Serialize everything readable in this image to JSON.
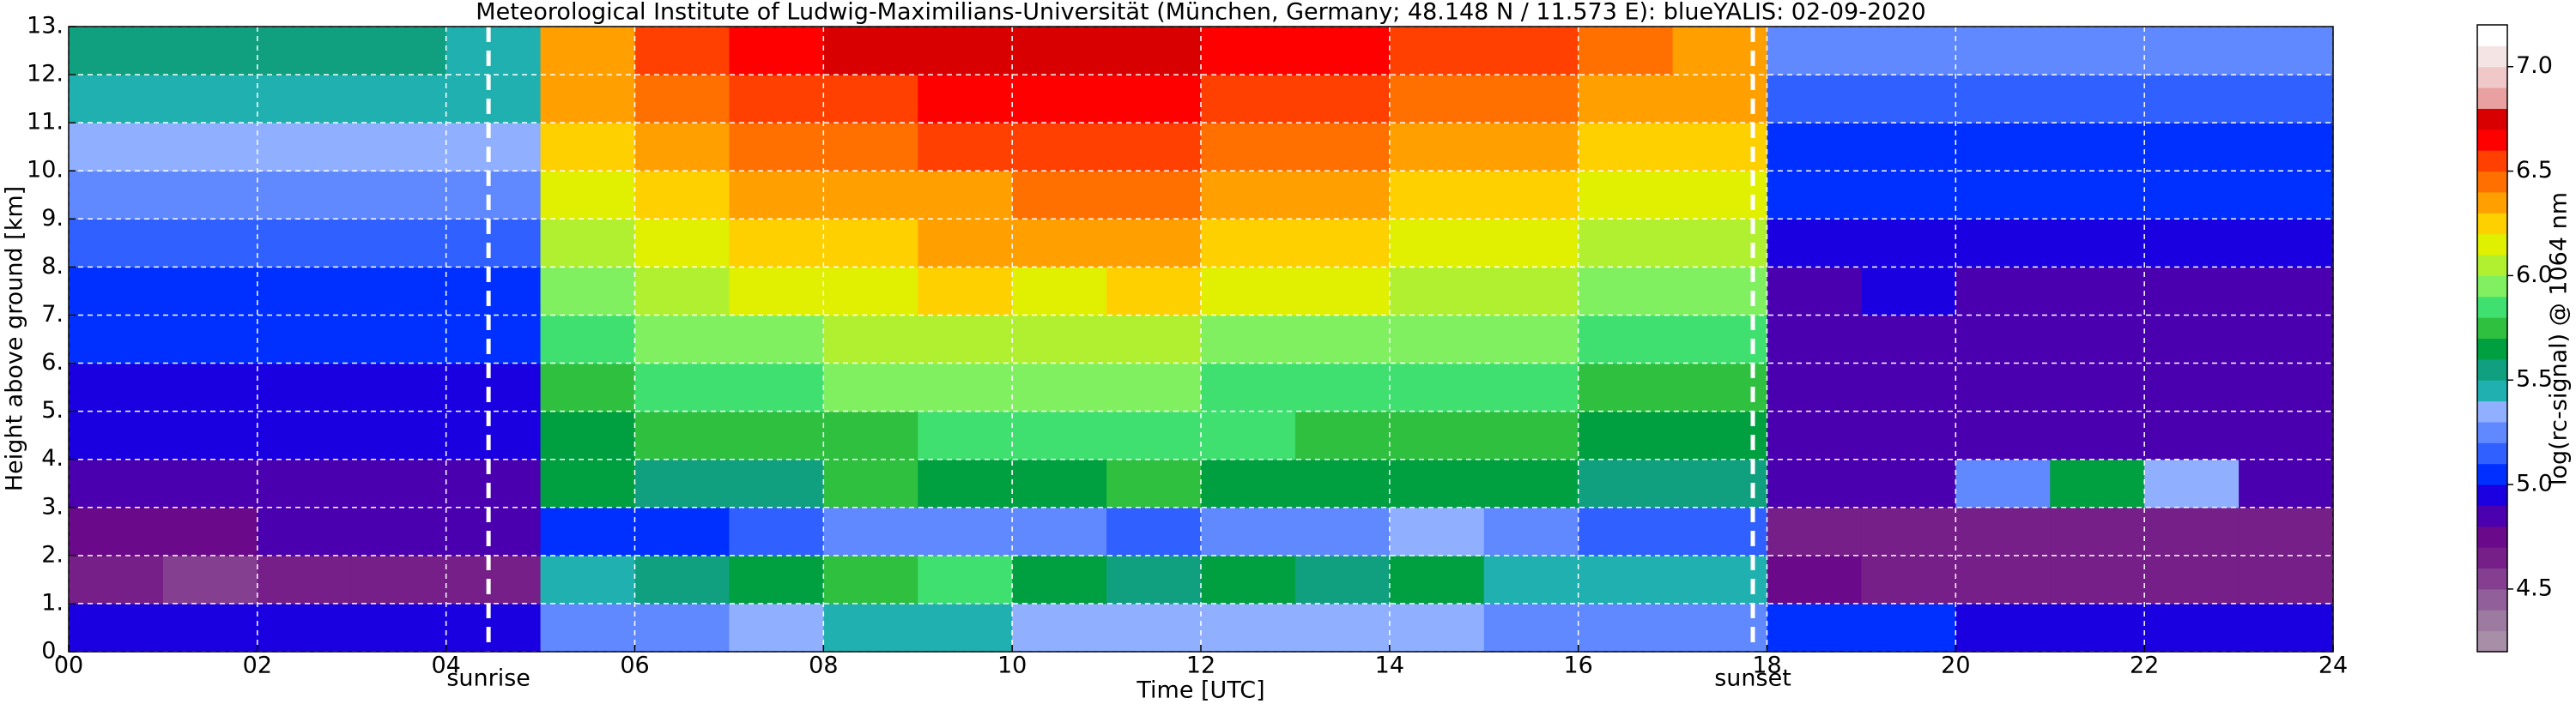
{
  "chart_data": {
    "type": "heatmap",
    "title": "Meteorological Institute of Ludwig-Maximilians-Universität (München, Germany; 48.148 N / 11.573 E):     blueYALIS: 02-09-2020",
    "xlabel": "Time [UTC]",
    "ylabel": "Height above ground [km]",
    "xlim": [
      0,
      24
    ],
    "ylim": [
      0,
      13
    ],
    "xticks": [
      {
        "value": 0,
        "label": "00"
      },
      {
        "value": 2,
        "label": "02"
      },
      {
        "value": 4,
        "label": "04"
      },
      {
        "value": 6,
        "label": "06"
      },
      {
        "value": 8,
        "label": "08"
      },
      {
        "value": 10,
        "label": "10"
      },
      {
        "value": 12,
        "label": "12"
      },
      {
        "value": 14,
        "label": "14"
      },
      {
        "value": 16,
        "label": "16"
      },
      {
        "value": 18,
        "label": "18"
      },
      {
        "value": 20,
        "label": "20"
      },
      {
        "value": 22,
        "label": "22"
      },
      {
        "value": 24,
        "label": "24"
      }
    ],
    "yticks": [
      {
        "value": 0,
        "label": "0."
      },
      {
        "value": 1,
        "label": "1."
      },
      {
        "value": 2,
        "label": "2."
      },
      {
        "value": 3,
        "label": "3."
      },
      {
        "value": 4,
        "label": "4."
      },
      {
        "value": 5,
        "label": "5."
      },
      {
        "value": 6,
        "label": "6."
      },
      {
        "value": 7,
        "label": "7."
      },
      {
        "value": 8,
        "label": "8."
      },
      {
        "value": 9,
        "label": "9."
      },
      {
        "value": 10,
        "label": "10."
      },
      {
        "value": 11,
        "label": "11."
      },
      {
        "value": 12,
        "label": "12."
      },
      {
        "value": 13,
        "label": "13."
      }
    ],
    "grid": true,
    "xbins": [
      0,
      1,
      2,
      3,
      4,
      5,
      6,
      7,
      8,
      9,
      10,
      11,
      12,
      13,
      14,
      15,
      16,
      17,
      18,
      19,
      20,
      21,
      22,
      23,
      24
    ],
    "ybins": [
      0,
      1,
      2,
      3,
      4,
      5,
      6,
      7,
      8,
      9,
      10,
      11,
      12,
      13
    ],
    "z": [
      [
        4.9,
        4.9,
        4.9,
        4.9,
        4.9,
        5.2,
        5.2,
        5.3,
        5.4,
        5.4,
        5.3,
        5.3,
        5.3,
        5.3,
        5.3,
        5.2,
        5.2,
        5.2,
        5.0,
        5.0,
        4.9,
        4.9,
        4.9,
        4.9
      ],
      [
        4.6,
        4.5,
        4.6,
        4.6,
        4.6,
        5.4,
        5.5,
        5.6,
        5.7,
        5.8,
        5.6,
        5.5,
        5.6,
        5.5,
        5.6,
        5.4,
        5.4,
        5.4,
        4.7,
        4.6,
        4.6,
        4.6,
        4.6,
        4.6
      ],
      [
        4.7,
        4.7,
        4.8,
        4.8,
        4.8,
        5.0,
        5.0,
        5.1,
        5.2,
        5.2,
        5.2,
        5.1,
        5.2,
        5.2,
        5.3,
        5.2,
        5.1,
        5.1,
        4.6,
        4.6,
        4.6,
        4.6,
        4.6,
        4.6
      ],
      [
        4.8,
        4.8,
        4.8,
        4.8,
        4.8,
        5.6,
        5.5,
        5.5,
        5.7,
        5.6,
        5.6,
        5.7,
        5.6,
        5.6,
        5.6,
        5.6,
        5.5,
        5.5,
        4.8,
        4.8,
        5.2,
        5.6,
        5.3,
        4.8
      ],
      [
        4.9,
        4.9,
        4.9,
        4.9,
        4.9,
        5.6,
        5.7,
        5.7,
        5.7,
        5.8,
        5.8,
        5.8,
        5.8,
        5.7,
        5.7,
        5.7,
        5.6,
        5.6,
        4.8,
        4.8,
        4.8,
        4.8,
        4.8,
        4.8
      ],
      [
        4.9,
        4.9,
        4.9,
        4.9,
        4.9,
        5.7,
        5.8,
        5.8,
        5.9,
        5.9,
        5.9,
        5.9,
        5.8,
        5.8,
        5.8,
        5.8,
        5.7,
        5.7,
        4.8,
        4.8,
        4.8,
        4.8,
        4.8,
        4.8
      ],
      [
        5.0,
        5.0,
        5.0,
        5.0,
        5.0,
        5.8,
        5.9,
        5.9,
        6.0,
        6.0,
        6.0,
        6.0,
        5.9,
        5.9,
        5.9,
        5.9,
        5.8,
        5.8,
        4.8,
        4.8,
        4.8,
        4.8,
        4.8,
        4.8
      ],
      [
        5.0,
        5.0,
        5.0,
        5.0,
        5.0,
        5.9,
        6.0,
        6.1,
        6.1,
        6.2,
        6.1,
        6.2,
        6.1,
        6.1,
        6.0,
        6.0,
        5.9,
        5.9,
        4.8,
        4.9,
        4.8,
        4.8,
        4.8,
        4.8
      ],
      [
        5.1,
        5.1,
        5.1,
        5.1,
        5.1,
        6.0,
        6.1,
        6.2,
        6.2,
        6.3,
        6.3,
        6.3,
        6.2,
        6.2,
        6.1,
        6.1,
        6.0,
        6.0,
        4.9,
        4.9,
        4.9,
        4.9,
        4.9,
        4.9
      ],
      [
        5.2,
        5.2,
        5.2,
        5.2,
        5.2,
        6.1,
        6.2,
        6.3,
        6.3,
        6.3,
        6.4,
        6.4,
        6.3,
        6.3,
        6.2,
        6.2,
        6.1,
        6.1,
        5.0,
        5.0,
        5.0,
        5.0,
        5.0,
        5.0
      ],
      [
        5.3,
        5.3,
        5.3,
        5.3,
        5.3,
        6.2,
        6.3,
        6.4,
        6.4,
        6.5,
        6.5,
        6.5,
        6.4,
        6.4,
        6.3,
        6.3,
        6.2,
        6.2,
        5.0,
        5.0,
        5.0,
        5.0,
        5.0,
        5.0
      ],
      [
        5.4,
        5.4,
        5.4,
        5.4,
        5.4,
        6.3,
        6.4,
        6.5,
        6.5,
        6.6,
        6.6,
        6.6,
        6.5,
        6.5,
        6.4,
        6.4,
        6.3,
        6.3,
        5.1,
        5.1,
        5.1,
        5.1,
        5.1,
        5.1
      ],
      [
        5.5,
        5.5,
        5.5,
        5.5,
        5.4,
        6.3,
        6.5,
        6.6,
        6.7,
        6.7,
        6.7,
        6.7,
        6.6,
        6.6,
        6.5,
        6.5,
        6.4,
        6.3,
        5.2,
        5.2,
        5.2,
        5.2,
        5.2,
        5.2
      ]
    ],
    "colorbar": {
      "label": "log(rc-signal) @ 1064 nm",
      "lim": [
        4.2,
        7.2
      ],
      "ticks": [
        4.5,
        {
          "value": 5,
          "label": "5.0"
        },
        5.5,
        {
          "value": 6,
          "label": "6.0"
        },
        6.5,
        {
          "value": 7,
          "label": "7.0"
        }
      ],
      "colors": [
        "#a88fa8",
        "#9d7aa0",
        "#915f9a",
        "#843f90",
        "#761f88",
        "#6a0a8a",
        "#4b00b0",
        "#1a00e0",
        "#0030ff",
        "#3060ff",
        "#6088ff",
        "#90b0ff",
        "#20b0b0",
        "#10a080",
        "#00a040",
        "#30c040",
        "#40e070",
        "#80f060",
        "#b0f030",
        "#e0f000",
        "#ffd000",
        "#ffa000",
        "#ff7000",
        "#ff4000",
        "#ff0000",
        "#d80000",
        "#e8a0a0",
        "#f0c8c8",
        "#f4e4e4",
        "#ffffff"
      ]
    },
    "annotations": [
      {
        "x": 4.45,
        "label": "sunrise"
      },
      {
        "x": 17.85,
        "label": "sunset"
      }
    ]
  }
}
